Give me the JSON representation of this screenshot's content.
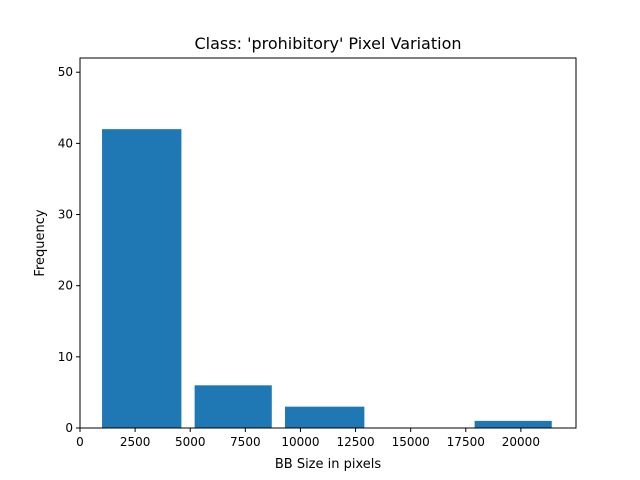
{
  "chart_data": {
    "type": "bar",
    "title": "Class: 'prohibitory' Pixel Variation",
    "xlabel": "BB Size in pixels",
    "ylabel": "Frequency",
    "xlim": [
      0,
      22500
    ],
    "ylim": [
      0,
      52
    ],
    "grid": false,
    "bar_color": "#1f77b4",
    "bars": [
      {
        "x_start": 1000,
        "x_end": 4600,
        "value": 42
      },
      {
        "x_start": 5200,
        "x_end": 8700,
        "value": 6
      },
      {
        "x_start": 9300,
        "x_end": 12900,
        "value": 3
      },
      {
        "x_start": 17900,
        "x_end": 21400,
        "value": 1
      }
    ],
    "xticks": [
      0,
      2500,
      5000,
      7500,
      10000,
      12500,
      15000,
      17500,
      20000
    ],
    "xtick_labels": [
      "0",
      "2500",
      "5000",
      "7500",
      "10000",
      "12500",
      "15000",
      "17500",
      "20000"
    ],
    "yticks": [
      0,
      10,
      20,
      30,
      40,
      50
    ],
    "ytick_labels": [
      "0",
      "10",
      "20",
      "30",
      "40",
      "50"
    ]
  }
}
